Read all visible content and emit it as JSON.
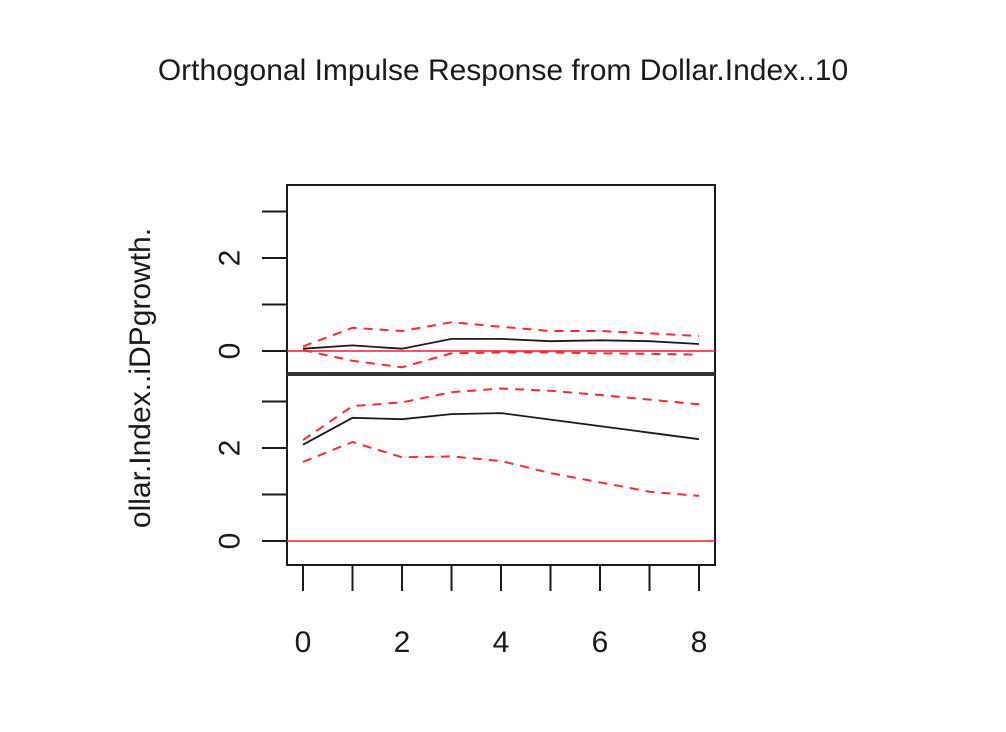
{
  "chart_data": {
    "title": "Orthogonal Impulse Response from Dollar.Index..10",
    "ylabel": "ollar.Index..iDPgrowth.",
    "type": "line",
    "x_ticks": [
      "0",
      "2",
      "4",
      "6",
      "8"
    ],
    "panels": [
      {
        "id": "top",
        "ylim": [
          -0.5,
          3.5
        ],
        "y_tick_values": [
          0,
          1,
          2,
          3
        ],
        "y_tick_labels": {
          "0": "0",
          "2": "2"
        },
        "zero_line": 0,
        "series": [
          {
            "role": "response",
            "color": "#1a1a1a",
            "dashed": false,
            "x": [
              0,
              1,
              2,
              3,
              4,
              5,
              6,
              7,
              8
            ],
            "values": [
              0.05,
              0.12,
              0.05,
              0.26,
              0.26,
              0.21,
              0.23,
              0.21,
              0.15
            ]
          },
          {
            "role": "upper",
            "color": "#ff2a2a",
            "dashed": true,
            "x": [
              0,
              1,
              2,
              3,
              4,
              5,
              6,
              7,
              8
            ],
            "values": [
              0.1,
              0.5,
              0.43,
              0.62,
              0.52,
              0.43,
              0.43,
              0.38,
              0.32
            ]
          },
          {
            "role": "lower",
            "color": "#ff2a2a",
            "dashed": true,
            "x": [
              0,
              1,
              2,
              3,
              4,
              5,
              6,
              7,
              8
            ],
            "values": [
              0.02,
              -0.21,
              -0.35,
              -0.05,
              -0.03,
              -0.03,
              -0.05,
              -0.06,
              -0.08
            ]
          }
        ]
      },
      {
        "id": "bottom",
        "ylim": [
          -0.5,
          3.5
        ],
        "y_tick_values": [
          0,
          1,
          2,
          3
        ],
        "y_tick_labels": {
          "0": "0",
          "2": "2"
        },
        "zero_line": 0,
        "series": [
          {
            "role": "response",
            "color": "#1a1a1a",
            "dashed": false,
            "x": [
              0,
              1,
              2,
              3,
              4,
              5,
              6,
              7,
              8
            ],
            "values": [
              2.07,
              2.65,
              2.62,
              2.73,
              2.75,
              2.61,
              2.47,
              2.33,
              2.19
            ]
          },
          {
            "role": "upper",
            "color": "#ff2a2a",
            "dashed": true,
            "x": [
              0,
              1,
              2,
              3,
              4,
              5,
              6,
              7,
              8
            ],
            "values": [
              2.17,
              2.9,
              2.98,
              3.2,
              3.28,
              3.23,
              3.14,
              3.04,
              2.94
            ]
          },
          {
            "role": "lower",
            "color": "#ff2a2a",
            "dashed": true,
            "x": [
              0,
              1,
              2,
              3,
              4,
              5,
              6,
              7,
              8
            ],
            "values": [
              1.7,
              2.13,
              1.8,
              1.82,
              1.72,
              1.46,
              1.26,
              1.06,
              0.97
            ]
          }
        ]
      }
    ]
  }
}
